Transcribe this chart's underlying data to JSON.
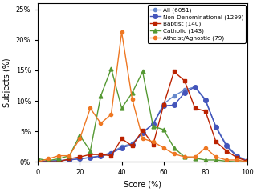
{
  "xlabel": "Score (%)",
  "ylabel": "Subjects (%)",
  "xlim": [
    0,
    100
  ],
  "ylim": [
    0,
    0.26
  ],
  "series": [
    {
      "label": "All (6051)",
      "color": "#6688cc",
      "marker": "o",
      "markersize": 3,
      "x": [
        0,
        5,
        10,
        15,
        20,
        25,
        30,
        35,
        40,
        45,
        50,
        55,
        60,
        65,
        70,
        75,
        80,
        85,
        90,
        95,
        100
      ],
      "y": [
        0.0,
        0.001,
        0.002,
        0.003,
        0.005,
        0.007,
        0.01,
        0.015,
        0.025,
        0.03,
        0.048,
        0.062,
        0.095,
        0.108,
        0.118,
        0.123,
        0.1,
        0.058,
        0.028,
        0.01,
        0.002
      ]
    },
    {
      "label": "Non-Denominational (1299)",
      "color": "#4455bb",
      "marker": "o",
      "markersize": 4,
      "x": [
        0,
        5,
        10,
        15,
        20,
        25,
        30,
        35,
        40,
        45,
        50,
        55,
        60,
        65,
        70,
        75,
        80,
        85,
        90,
        95,
        100
      ],
      "y": [
        0.0,
        0.001,
        0.002,
        0.003,
        0.005,
        0.007,
        0.009,
        0.014,
        0.023,
        0.028,
        0.048,
        0.062,
        0.092,
        0.093,
        0.113,
        0.123,
        0.102,
        0.057,
        0.026,
        0.009,
        0.001
      ]
    },
    {
      "label": "Baptist (140)",
      "color": "#bb2200",
      "marker": "s",
      "markersize": 3.5,
      "x": [
        0,
        5,
        10,
        15,
        20,
        25,
        30,
        35,
        40,
        45,
        50,
        55,
        60,
        65,
        70,
        75,
        80,
        85,
        90,
        95,
        100
      ],
      "y": [
        0.0,
        0.0,
        0.0,
        0.005,
        0.008,
        0.012,
        0.012,
        0.01,
        0.038,
        0.026,
        0.052,
        0.028,
        0.093,
        0.148,
        0.133,
        0.088,
        0.083,
        0.033,
        0.018,
        0.007,
        0.001
      ]
    },
    {
      "label": "Catholic (143)",
      "color": "#559933",
      "marker": "^",
      "markersize": 3.5,
      "x": [
        0,
        5,
        10,
        15,
        20,
        25,
        30,
        35,
        40,
        45,
        50,
        55,
        60,
        65,
        70,
        75,
        80,
        85,
        90,
        95,
        100
      ],
      "y": [
        0.005,
        0.002,
        0.005,
        0.01,
        0.043,
        0.018,
        0.108,
        0.153,
        0.088,
        0.113,
        0.148,
        0.058,
        0.053,
        0.023,
        0.008,
        0.006,
        0.003,
        0.003,
        0.001,
        0.0,
        0.0
      ]
    },
    {
      "label": "Atheist/Agnostic (79)",
      "color": "#ee7722",
      "marker": "o",
      "markersize": 3,
      "x": [
        0,
        5,
        10,
        15,
        20,
        25,
        30,
        35,
        40,
        45,
        50,
        55,
        60,
        65,
        70,
        75,
        80,
        85,
        90,
        95,
        100
      ],
      "y": [
        0.0,
        0.005,
        0.01,
        0.01,
        0.038,
        0.088,
        0.063,
        0.078,
        0.213,
        0.103,
        0.038,
        0.033,
        0.023,
        0.013,
        0.008,
        0.008,
        0.023,
        0.008,
        0.003,
        0.003,
        0.0
      ]
    }
  ],
  "yticks": [
    0,
    0.05,
    0.1,
    0.15,
    0.2,
    0.25
  ],
  "ytick_labels": [
    "0%",
    "5%",
    "10%",
    "15%",
    "20%",
    "25%"
  ],
  "xticks": [
    0,
    20,
    40,
    60,
    80,
    100
  ],
  "legend_loc": "upper right",
  "legend_fontsize": 5.2,
  "axis_fontsize": 7,
  "tick_fontsize": 6
}
